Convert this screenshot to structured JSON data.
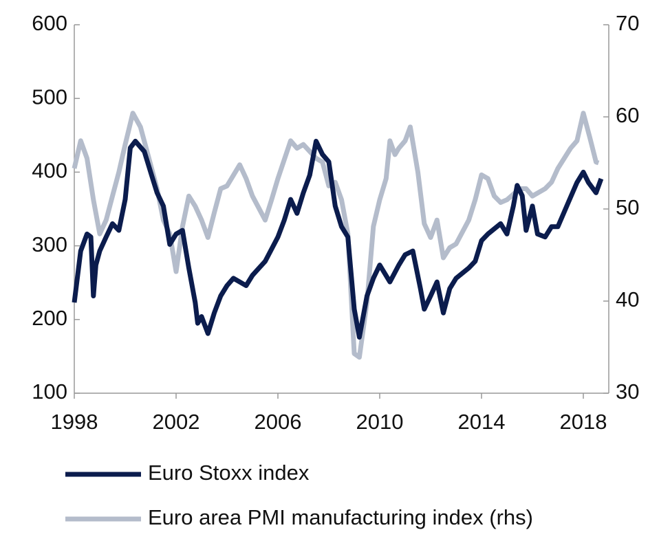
{
  "chart_data": {
    "type": "line",
    "series": [
      {
        "name": "Euro Stoxx index",
        "color": "#0b1c4d",
        "axis": "y",
        "x": [
          1998.0,
          1998.25,
          1998.5,
          1998.65,
          1998.75,
          1998.85,
          1999.0,
          1999.25,
          1999.5,
          1999.75,
          2000.0,
          2000.2,
          2000.4,
          2000.75,
          2001.0,
          2001.25,
          2001.5,
          2001.75,
          2002.0,
          2002.25,
          2002.5,
          2002.75,
          2002.85,
          2003.0,
          2003.25,
          2003.5,
          2003.75,
          2004.0,
          2004.25,
          2004.75,
          2005.0,
          2005.5,
          2006.0,
          2006.25,
          2006.5,
          2006.75,
          2007.0,
          2007.25,
          2007.5,
          2007.75,
          2008.0,
          2008.25,
          2008.5,
          2008.75,
          2009.0,
          2009.2,
          2009.5,
          2009.75,
          2010.0,
          2010.4,
          2010.75,
          2011.0,
          2011.3,
          2011.6,
          2011.75,
          2012.0,
          2012.25,
          2012.5,
          2012.75,
          2013.0,
          2013.5,
          2013.75,
          2014.0,
          2014.25,
          2014.75,
          2015.0,
          2015.25,
          2015.4,
          2015.6,
          2015.75,
          2016.0,
          2016.2,
          2016.5,
          2016.75,
          2017.0,
          2017.4,
          2017.75,
          2018.0,
          2018.2,
          2018.5,
          2018.7
        ],
        "values": [
          223,
          293,
          316,
          312,
          232,
          274,
          293,
          312,
          330,
          321,
          363,
          433,
          442,
          428,
          400,
          372,
          354,
          302,
          316,
          321,
          270,
          223,
          195,
          204,
          181,
          209,
          232,
          246,
          256,
          246,
          260,
          279,
          312,
          335,
          363,
          344,
          372,
          396,
          442,
          424,
          414,
          354,
          326,
          312,
          214,
          176,
          232,
          256,
          274,
          251,
          274,
          288,
          293,
          242,
          214,
          232,
          251,
          209,
          242,
          256,
          270,
          279,
          307,
          316,
          330,
          316,
          354,
          382,
          368,
          321,
          354,
          316,
          312,
          326,
          326,
          358,
          386,
          400,
          386,
          372,
          391
        ]
      },
      {
        "name": "Euro area PMI manufacturing index (rhs)",
        "color": "#b4bccb",
        "axis": "y2",
        "x": [
          1998.0,
          1998.25,
          1998.5,
          1998.75,
          1999.0,
          1999.25,
          1999.5,
          1999.75,
          2000.0,
          2000.3,
          2000.6,
          2001.0,
          2001.25,
          2001.5,
          2001.75,
          2002.0,
          2002.25,
          2002.5,
          2002.75,
          2003.0,
          2003.25,
          2003.5,
          2003.75,
          2004.0,
          2004.5,
          2004.75,
          2005.0,
          2005.5,
          2005.75,
          2006.0,
          2006.5,
          2006.75,
          2007.0,
          2007.5,
          2007.75,
          2008.0,
          2008.25,
          2008.5,
          2008.75,
          2009.0,
          2009.2,
          2009.5,
          2009.75,
          2010.0,
          2010.25,
          2010.4,
          2010.6,
          2010.75,
          2011.0,
          2011.2,
          2011.5,
          2011.75,
          2012.0,
          2012.25,
          2012.5,
          2012.75,
          2013.0,
          2013.5,
          2013.75,
          2014.0,
          2014.25,
          2014.5,
          2014.75,
          2015.0,
          2015.5,
          2015.75,
          2016.0,
          2016.5,
          2016.75,
          2017.0,
          2017.5,
          2017.75,
          2018.0,
          2018.25,
          2018.5,
          2018.6
        ],
        "values": [
          54.4,
          57.4,
          55.5,
          51.0,
          47.3,
          48.8,
          51.4,
          54.0,
          57.0,
          60.4,
          58.9,
          54.8,
          52.2,
          48.8,
          47.3,
          43.2,
          48.1,
          51.4,
          50.3,
          48.8,
          46.9,
          49.6,
          52.2,
          52.5,
          54.8,
          53.3,
          51.4,
          48.8,
          51.0,
          53.3,
          57.4,
          56.6,
          57.0,
          55.5,
          55.1,
          52.5,
          52.9,
          51.0,
          47.3,
          34.3,
          33.9,
          39.9,
          48.1,
          51.0,
          53.3,
          57.4,
          55.9,
          56.6,
          57.4,
          58.9,
          54.0,
          48.4,
          46.9,
          48.8,
          44.7,
          45.8,
          46.2,
          48.8,
          51.0,
          53.7,
          53.3,
          51.4,
          50.7,
          51.0,
          52.2,
          52.2,
          51.4,
          52.2,
          52.9,
          54.4,
          56.6,
          57.4,
          60.4,
          57.8,
          55.1,
          55.0
        ]
      }
    ],
    "xlim": [
      1998,
      2019
    ],
    "xticks": [
      1998,
      2002,
      2006,
      2010,
      2014,
      2018
    ],
    "ylim": [
      100,
      600
    ],
    "yticks": [
      100,
      200,
      300,
      400,
      500,
      600
    ],
    "y2lim": [
      30,
      70
    ],
    "y2ticks": [
      30,
      40,
      50,
      60,
      70
    ],
    "legend": "bottom"
  }
}
